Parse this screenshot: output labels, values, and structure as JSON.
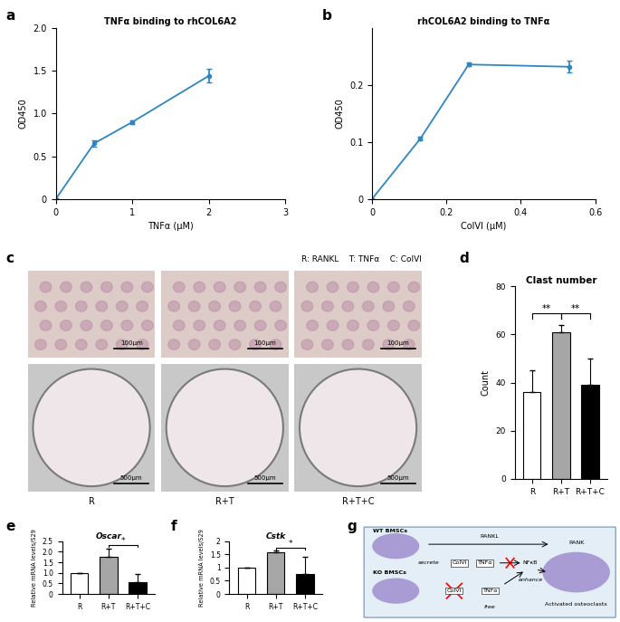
{
  "chart_data": [
    {
      "panel": "a",
      "type": "line",
      "title": "TNFα binding to rhCOL6A2",
      "x_label": "TNFα (μM)",
      "y_label": "OD450",
      "x": [
        0,
        0.5,
        1,
        2
      ],
      "values": [
        0,
        0.65,
        0.9,
        1.44
      ],
      "errors": [
        0,
        0.04,
        0.02,
        0.08
      ],
      "color": "#2e86c1",
      "marker": "o",
      "xlim": [
        0,
        3
      ],
      "xticks": [
        0,
        1,
        2,
        3
      ],
      "ylim": [
        0,
        2
      ],
      "yticks": [
        0,
        0.5,
        {
          "value": 1,
          "label": "1.0"
        },
        1.5,
        {
          "value": 2,
          "label": "2.0"
        }
      ],
      "grid": false
    },
    {
      "panel": "b",
      "type": "line",
      "title": "rhCOL6A2 binding to TNFα",
      "x_label": "ColVI (μM)",
      "y_label": "OD450",
      "x": [
        0,
        0.13,
        0.26,
        0.53
      ],
      "values": [
        0,
        0.106,
        0.236,
        0.232
      ],
      "errors": [
        0,
        0.003,
        0.003,
        0.01
      ],
      "color": "#2e86c1",
      "marker": "o",
      "xlim": [
        0,
        0.6
      ],
      "xticks": [
        0,
        0.2,
        0.4,
        0.6
      ],
      "ylim": [
        0,
        0.3
      ],
      "yticks": [
        0,
        0.1,
        0.2
      ],
      "grid": false
    },
    {
      "panel": "d",
      "type": "bar",
      "title": "Clast number",
      "y_label": "Count",
      "categories": [
        "R",
        "R+T",
        "R+T+C"
      ],
      "values": [
        36,
        61,
        39
      ],
      "errors": [
        9,
        3,
        11
      ],
      "colors": [
        "#ffffff",
        "#a6a6a6",
        "#000000"
      ],
      "ylim": [
        0,
        80
      ],
      "yticks": [
        0,
        20,
        40,
        60,
        80
      ],
      "significance": [
        {
          "pair": [
            "R",
            "R+T"
          ],
          "label": "**"
        },
        {
          "pair": [
            "R+T",
            "R+T+C"
          ],
          "label": "**"
        }
      ],
      "grid": false
    },
    {
      "panel": "e",
      "type": "bar",
      "title": "Oscar",
      "y_label": "Relative mRNA levels/S29",
      "categories": [
        "R",
        "R+T",
        "R+T+C"
      ],
      "values": [
        1.0,
        1.78,
        0.55
      ],
      "errors": [
        0,
        0.38,
        0.4
      ],
      "colors": [
        "#ffffff",
        "#a6a6a6",
        "#000000"
      ],
      "ylim": [
        0,
        2.5
      ],
      "yticks": [
        0,
        0.5,
        {
          "value": 1,
          "label": "1.0"
        },
        1.5,
        {
          "value": 2,
          "label": "2.0"
        },
        2.5
      ],
      "significance": [
        {
          "pair": [
            "R+T",
            "R+T+C"
          ],
          "label": "*"
        }
      ],
      "grid": false
    },
    {
      "panel": "f",
      "type": "bar",
      "title": "Cstk",
      "y_label": "Relative mRNA levels/S29",
      "categories": [
        "R",
        "R+T",
        "R+T+C"
      ],
      "values": [
        1.0,
        1.58,
        0.77
      ],
      "errors": [
        0,
        0.05,
        0.63
      ],
      "colors": [
        "#ffffff",
        "#a6a6a6",
        "#000000"
      ],
      "ylim": [
        0,
        2
      ],
      "yticks": [
        0,
        0.5,
        1,
        1.5,
        2
      ],
      "significance": [
        {
          "pair": [
            "R+T",
            "R+T+C"
          ],
          "label": "*"
        }
      ],
      "grid": false
    }
  ],
  "images": {
    "panel": "c",
    "key": [
      "R: RANKL",
      "T: TNFα",
      "C: ColVI"
    ],
    "conditions": [
      "R",
      "R+T",
      "R+T+C"
    ],
    "top_scale_bar": "100μm",
    "bottom_scale_bar": "500μm"
  },
  "diagram": {
    "panel": "g",
    "labels": {
      "wt": "WT BMSCs",
      "ko": "KO BMSCs",
      "secrete": "secrete",
      "rankl": "RANKL",
      "rank": "RANK",
      "colvi": "ColVI",
      "tnfa": "TNFα",
      "nfkb": "NFκB",
      "enhance": "enhance",
      "free": "free",
      "osteoclast": "Activated osteoclasts"
    }
  }
}
